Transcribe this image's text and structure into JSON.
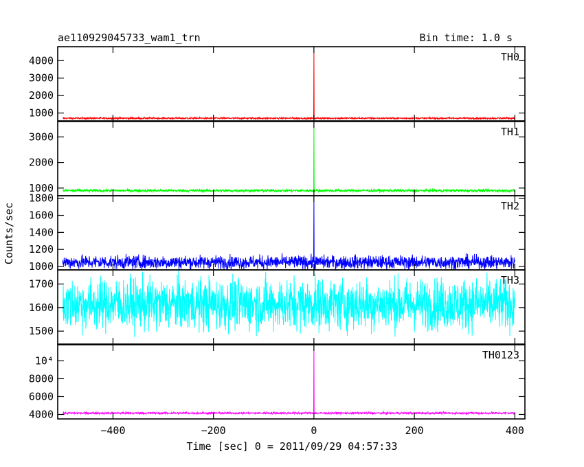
{
  "header": {
    "title": "ae110929045733_wam1_trn",
    "bin_time": "Bin time: 1.0 s"
  },
  "chart_data": {
    "type": "line",
    "title": "ae110929045733_wam1_trn",
    "subtitle": "Bin time: 1.0 s",
    "xlabel": "Time [sec] 0 = 2011/09/29 04:57:33",
    "ylabel": "Counts/sec",
    "xlim": [
      -510,
      420
    ],
    "x_ticks": [
      -400,
      -200,
      0,
      200,
      400
    ],
    "x_tick_labels": [
      "−400",
      "−200",
      "0",
      "200",
      "400"
    ],
    "x_range": [
      -500,
      400
    ],
    "grid": false,
    "series": [
      {
        "name": "TH0",
        "color": "#ff0000",
        "ylim": [
          550,
          4800
        ],
        "y_ticks": [
          1000,
          2000,
          3000,
          4000
        ],
        "y_tick_labels": [
          "1000",
          "2000",
          "3000",
          "4000"
        ],
        "baseline": 700,
        "noise": 25,
        "spike_x": 0,
        "spike_peak": 4800
      },
      {
        "name": "TH1",
        "color": "#00ff00",
        "ylim": [
          700,
          3600
        ],
        "y_ticks": [
          1000,
          2000,
          3000
        ],
        "y_tick_labels": [
          "1000",
          "2000",
          "3000"
        ],
        "baseline": 900,
        "noise": 30,
        "spike_x": 0,
        "spike_peak": 3600
      },
      {
        "name": "TH2",
        "color": "#0000ff",
        "ylim": [
          960,
          1830
        ],
        "y_ticks": [
          1000,
          1200,
          1400,
          1600,
          1800
        ],
        "y_tick_labels": [
          "1000",
          "1200",
          "1400",
          "1600",
          "1800"
        ],
        "baseline": 1050,
        "noise": 40,
        "spike_x": 0,
        "spike_peak": 1830
      },
      {
        "name": "TH3",
        "color": "#00ffff",
        "ylim": [
          1445,
          1760
        ],
        "y_ticks": [
          1500,
          1600,
          1700
        ],
        "y_tick_labels": [
          "1500",
          "1600",
          "1700"
        ],
        "baseline": 1615,
        "noise": 55,
        "spike_x": null,
        "spike_peak": null
      },
      {
        "name": "TH0123",
        "color": "#ff00ff",
        "ylim": [
          3500,
          11800
        ],
        "y_ticks": [
          4000,
          6000,
          8000,
          10000
        ],
        "y_tick_labels": [
          "4000",
          "6000",
          "8000",
          "10⁴"
        ],
        "baseline": 4150,
        "noise": 60,
        "spike_x": 0,
        "spike_peak": 11800
      }
    ]
  }
}
